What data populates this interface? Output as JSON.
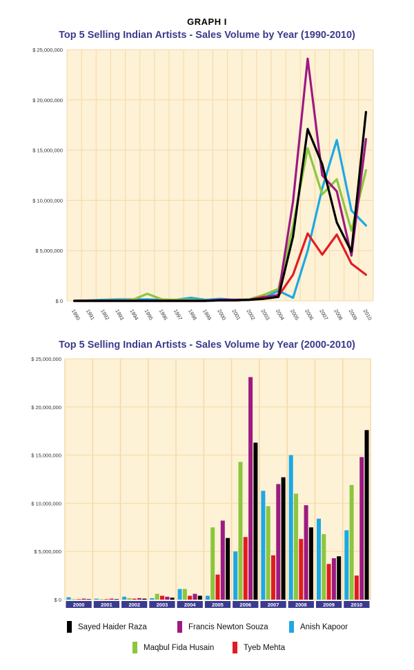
{
  "header": {
    "graph_label": "GRAPH I"
  },
  "colors": {
    "plot_bg": "#fdf1d6",
    "grid": "#f6d9a3",
    "year_band": "#3a3a8e",
    "Sayed Haider Raza": "#000000",
    "Francis Newton Souza": "#9c1a82",
    "Anish Kapoor": "#1ca8e4",
    "Maqbul Fida Husain": "#8cc63f",
    "Tyeb Mehta": "#e21b23"
  },
  "legend": [
    {
      "name": "Sayed Haider Raza",
      "color": "#000000"
    },
    {
      "name": "Francis Newton Souza",
      "color": "#9c1a82"
    },
    {
      "name": "Anish Kapoor",
      "color": "#1ca8e4"
    },
    {
      "name": "Maqbul Fida Husain",
      "color": "#8cc63f"
    },
    {
      "name": "Tyeb Mehta",
      "color": "#e21b23"
    }
  ],
  "chart_data": [
    {
      "type": "line",
      "title": "Top 5 Selling Indian Artists - Sales Volume by Year (1990-2010)",
      "xlabel": "",
      "ylabel": "",
      "ylim": [
        0,
        25000000
      ],
      "yticks": [
        0,
        5000000,
        10000000,
        15000000,
        20000000,
        25000000
      ],
      "ytick_labels": [
        "$ 0",
        "$ 5,000,000",
        "$ 10,000,000",
        "$ 15,000,000",
        "$ 20,000,000",
        "$ 25,000,000"
      ],
      "categories": [
        "1990",
        "1991",
        "1992",
        "1993",
        "1994",
        "1995",
        "1996",
        "1997",
        "1998",
        "1999",
        "2000",
        "2001",
        "2002",
        "2003",
        "2004",
        "2005",
        "2006",
        "2007",
        "2008",
        "2009",
        "2010"
      ],
      "grid": true,
      "series": [
        {
          "name": "Anish Kapoor",
          "values": [
            0,
            50000,
            100000,
            150000,
            150000,
            150000,
            100000,
            100000,
            300000,
            100000,
            200000,
            100000,
            150000,
            300000,
            1000000,
            300000,
            5000000,
            11200000,
            16000000,
            9000000,
            7500000
          ]
        },
        {
          "name": "Maqbul Fida Husain",
          "values": [
            0,
            0,
            50000,
            50000,
            100000,
            700000,
            150000,
            100000,
            100000,
            50000,
            50000,
            100000,
            150000,
            600000,
            1200000,
            7500000,
            15200000,
            10600000,
            12100000,
            7000000,
            13000000
          ]
        },
        {
          "name": "Tyeb Mehta",
          "values": [
            0,
            0,
            0,
            0,
            0,
            0,
            0,
            0,
            0,
            0,
            50000,
            50000,
            100000,
            400000,
            500000,
            2600000,
            6700000,
            4600000,
            6600000,
            3700000,
            2600000
          ]
        },
        {
          "name": "Francis Newton Souza",
          "values": [
            0,
            0,
            0,
            0,
            0,
            0,
            0,
            0,
            0,
            0,
            100000,
            100000,
            100000,
            300000,
            600000,
            9900000,
            24100000,
            12500000,
            10900000,
            4500000,
            16100000
          ]
        },
        {
          "name": "Sayed Haider Raza",
          "values": [
            0,
            0,
            0,
            0,
            0,
            0,
            0,
            0,
            0,
            0,
            50000,
            50000,
            100000,
            200000,
            400000,
            6400000,
            17100000,
            13600000,
            7800000,
            4900000,
            18800000
          ]
        }
      ]
    },
    {
      "type": "bar",
      "title": "Top 5 Selling Indian Artists - Sales Volume by Year (2000-2010)",
      "xlabel": "",
      "ylabel": "",
      "ylim": [
        0,
        25000000
      ],
      "yticks": [
        0,
        5000000,
        10000000,
        15000000,
        20000000,
        25000000
      ],
      "ytick_labels": [
        "$ 0",
        "$ 5,000,000",
        "$ 10,000,000",
        "$ 15,000,000",
        "$ 20,000,000",
        "$ 25,000,000"
      ],
      "categories": [
        "2000",
        "2001",
        "2002",
        "2003",
        "2004",
        "2005",
        "2006",
        "2007",
        "2008",
        "2009",
        "2010"
      ],
      "grid": true,
      "series": [
        {
          "name": "Anish Kapoor",
          "values": [
            250000,
            100000,
            300000,
            150000,
            1100000,
            400000,
            5000000,
            11300000,
            15000000,
            8400000,
            7200000
          ]
        },
        {
          "name": "Maqbul Fida Husain",
          "values": [
            50000,
            50000,
            150000,
            600000,
            1100000,
            7500000,
            14300000,
            9700000,
            11000000,
            6800000,
            11900000
          ]
        },
        {
          "name": "Tyeb Mehta",
          "values": [
            50000,
            50000,
            100000,
            400000,
            400000,
            2600000,
            6500000,
            4600000,
            6300000,
            3700000,
            2500000
          ]
        },
        {
          "name": "Francis Newton Souza",
          "values": [
            100000,
            100000,
            150000,
            300000,
            600000,
            8200000,
            23100000,
            12000000,
            9800000,
            4300000,
            14800000
          ]
        },
        {
          "name": "Sayed Haider Raza",
          "values": [
            50000,
            50000,
            100000,
            200000,
            400000,
            6400000,
            16300000,
            12700000,
            7500000,
            4500000,
            17600000
          ]
        }
      ]
    }
  ]
}
